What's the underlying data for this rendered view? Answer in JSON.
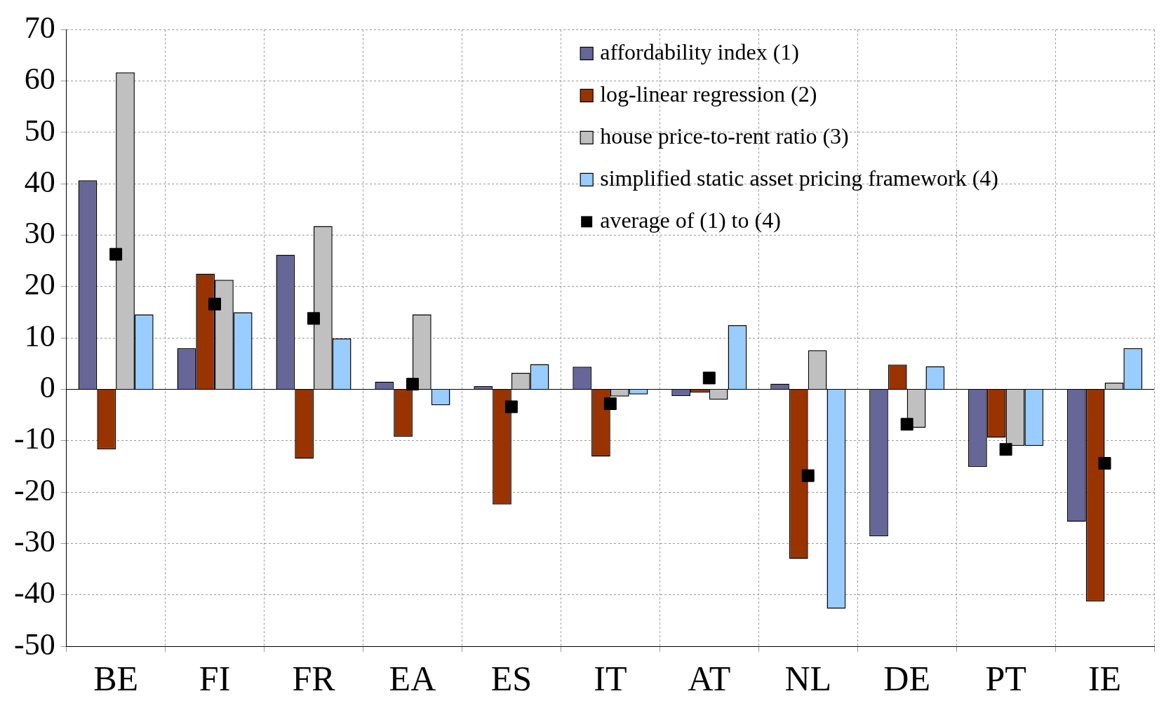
{
  "chart_data": {
    "type": "bar",
    "categories": [
      "BE",
      "FI",
      "FR",
      "EA",
      "ES",
      "IT",
      "AT",
      "NL",
      "DE",
      "PT",
      "IE"
    ],
    "series": [
      {
        "name": "affordability index (1)",
        "color": "#666699",
        "values": [
          40.7,
          8.0,
          26.2,
          1.5,
          0.6,
          4.4,
          -1.3,
          1.1,
          -28.6,
          -15.1,
          -25.8
        ]
      },
      {
        "name": "log-linear regression (2)",
        "color": "#993300",
        "values": [
          -11.7,
          22.5,
          -13.5,
          -9.2,
          -22.4,
          -13.1,
          -0.6,
          -33.0,
          4.8,
          -9.4,
          -41.3
        ]
      },
      {
        "name": "house price-to-rent ratio (3)",
        "color": "#c0c0c0",
        "values": [
          61.7,
          21.3,
          31.8,
          14.6,
          3.2,
          -1.4,
          -2.0,
          7.6,
          -7.5,
          -11.0,
          1.3
        ]
      },
      {
        "name": "simplified static asset pricing framework (4)",
        "color": "#99ccff",
        "values": [
          14.6,
          15.0,
          9.9,
          -3.1,
          4.9,
          -1.0,
          12.5,
          -42.7,
          4.5,
          -11.0,
          8.0
        ]
      },
      {
        "name": "average of (1) to (4)",
        "type": "scatter",
        "marker": "square",
        "color": "#000000",
        "values": [
          26.3,
          16.6,
          13.8,
          1.0,
          -3.4,
          -2.8,
          2.2,
          -16.8,
          -6.8,
          -11.7,
          -14.4
        ]
      }
    ],
    "ylim": [
      -50,
      70
    ],
    "yticks": [
      -50,
      -40,
      -30,
      -20,
      -10,
      0,
      10,
      20,
      30,
      40,
      50,
      60,
      70
    ],
    "grid": true,
    "legend": "top right"
  }
}
